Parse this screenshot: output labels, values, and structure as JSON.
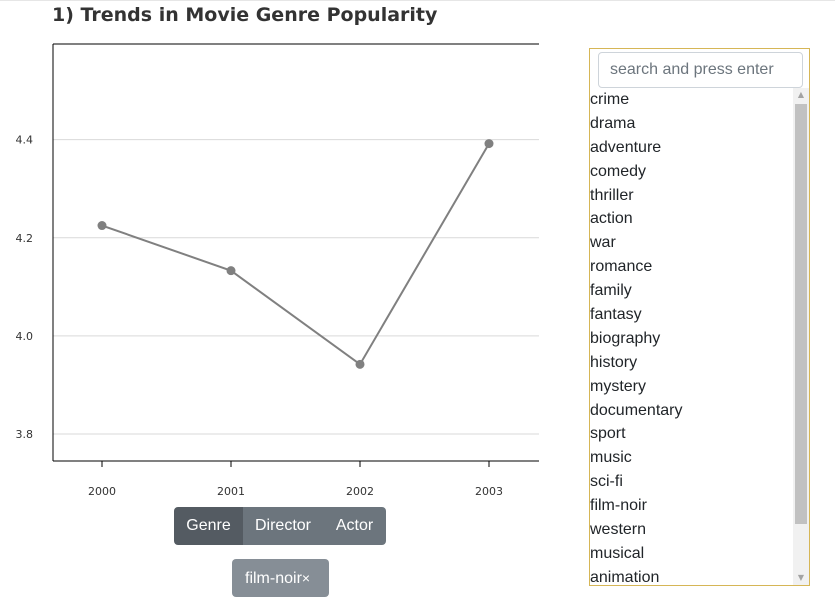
{
  "page": {
    "title": "1) Trends in Movie Genre Popularity"
  },
  "chart_data": {
    "type": "line",
    "title": "",
    "xlabel": "",
    "ylabel": "",
    "x": [
      "2000",
      "2001",
      "2002",
      "2003"
    ],
    "values": [
      4.225,
      4.133,
      3.942,
      4.392
    ],
    "ylim": [
      3.745,
      4.595
    ],
    "yticks": [
      3.8,
      4.0,
      4.2,
      4.4
    ],
    "ytick_labels": [
      "3.8",
      "4.0",
      "4.2",
      "4.4"
    ],
    "grid": "horizontal",
    "line_color": "#808080"
  },
  "toggle": {
    "genre_label": "Genre",
    "director_label": "Director",
    "actor_label": "Actor",
    "active": "Genre"
  },
  "filter_chip": {
    "label": "film-noir",
    "remove_label": "×"
  },
  "search": {
    "placeholder": "search and press enter",
    "value": ""
  },
  "genre_list": {
    "items": [
      "crime",
      "drama",
      "adventure",
      "comedy",
      "thriller",
      "action",
      "war",
      "romance",
      "family",
      "fantasy",
      "biography",
      "history",
      "mystery",
      "documentary",
      "sport",
      "music",
      "sci-fi",
      "film-noir",
      "western",
      "musical",
      "animation"
    ]
  },
  "colors": {
    "panel_border": "#d6b656",
    "button_bg": "#6c757d",
    "button_active_bg": "#545b62",
    "chip_bg": "#868e96"
  }
}
